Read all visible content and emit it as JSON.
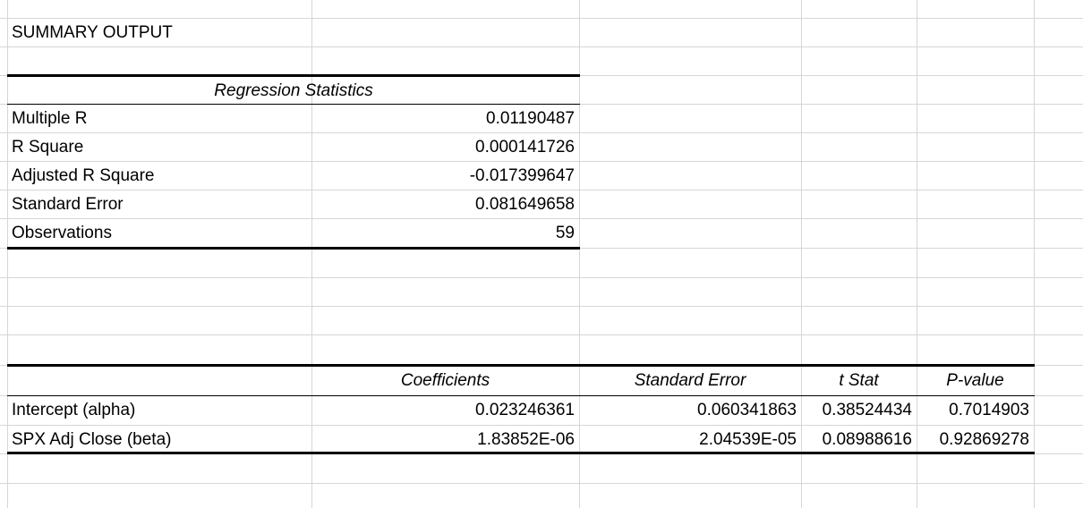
{
  "title": "SUMMARY OUTPUT",
  "regression_stats": {
    "header": "Regression Statistics",
    "rows": [
      {
        "label": "Multiple R",
        "value": "0.01190487"
      },
      {
        "label": "R Square",
        "value": "0.000141726"
      },
      {
        "label": "Adjusted R Square",
        "value": "-0.017399647"
      },
      {
        "label": "Standard Error",
        "value": "0.081649658"
      },
      {
        "label": "Observations",
        "value": "59"
      }
    ]
  },
  "coef_table": {
    "headers": [
      "Coefficients",
      "Standard Error",
      "t Stat",
      "P-value"
    ],
    "rows": [
      {
        "label": "Intercept (alpha)",
        "coef": "0.023246361",
        "se": "0.060341863",
        "t": "0.38524434",
        "p": "0.7014903"
      },
      {
        "label": "SPX Adj Close (beta)",
        "coef": "1.83852E-06",
        "se": "2.04539E-05",
        "t": "0.08988616",
        "p": "0.92869278"
      }
    ]
  }
}
